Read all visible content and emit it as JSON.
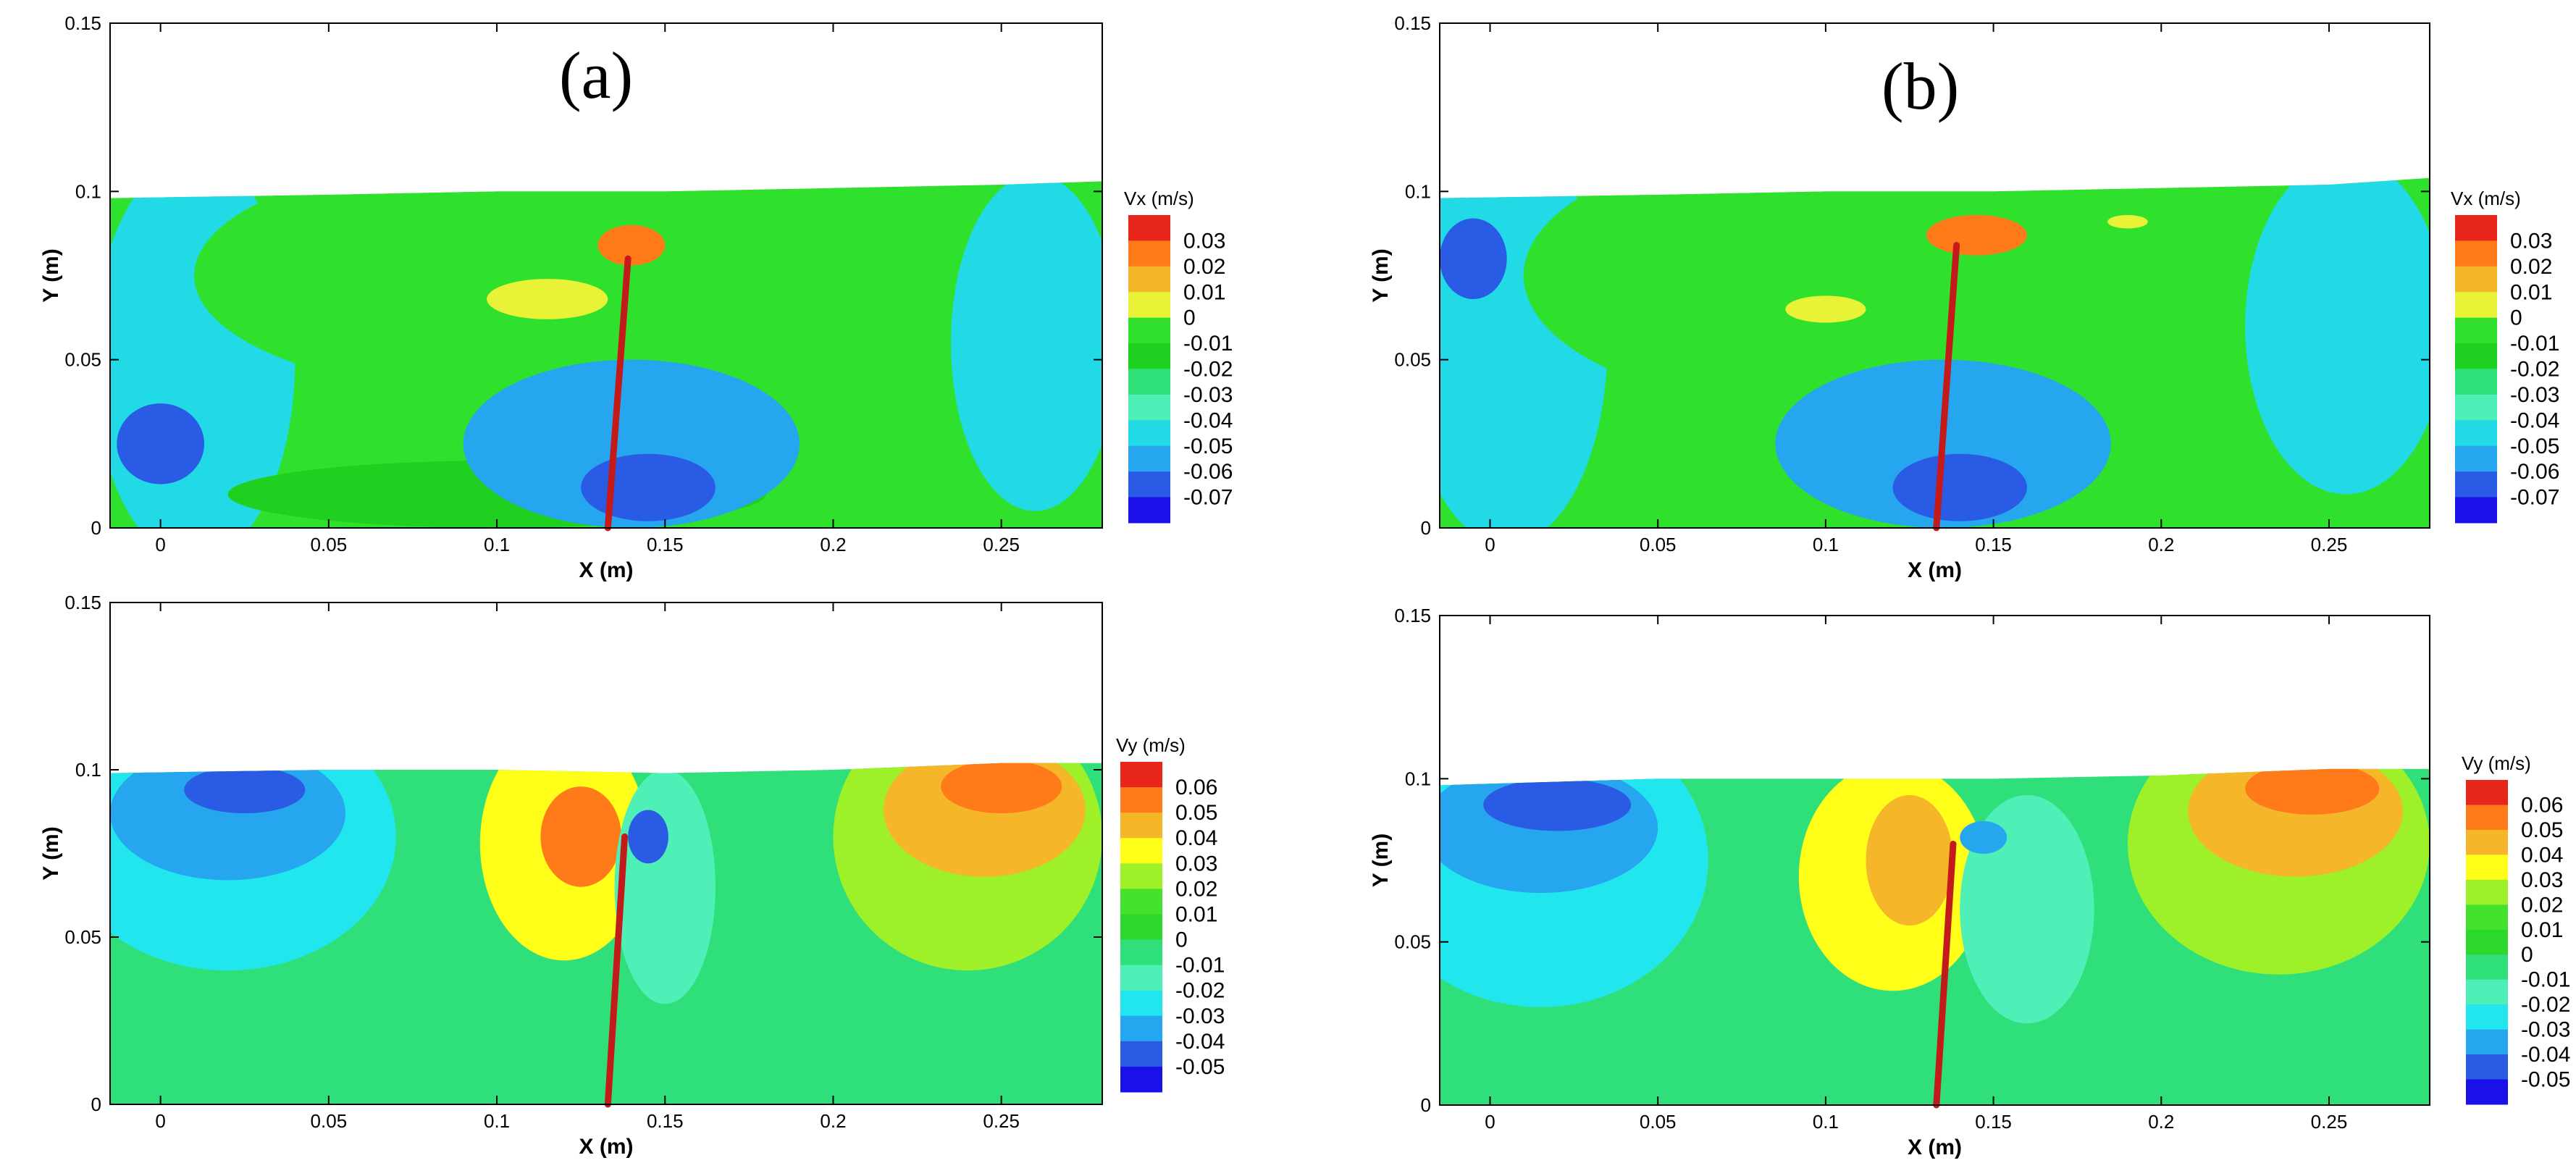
{
  "chart_data": [
    {
      "type": "heatmap",
      "panel_tag": "(a)",
      "quantity": "Vx",
      "xlabel": "X (m)",
      "ylabel": "Y (m)",
      "xlim": [
        -0.015,
        0.28
      ],
      "ylim": [
        0,
        0.15
      ],
      "x_ticks": [
        0,
        0.05,
        0.1,
        0.15,
        0.2,
        0.25
      ],
      "x_tick_labels": [
        "0",
        "0.05",
        "0.1",
        "0.15",
        "0.2",
        "0.25"
      ],
      "y_ticks": [
        0,
        0.05,
        0.1,
        0.15
      ],
      "y_tick_labels": [
        "0",
        "0.05",
        "0.1",
        "0.15"
      ],
      "grid": false,
      "legend": {
        "title": "Vx (m/s)",
        "placement": "right",
        "levels": [
          "0.03",
          "0.02",
          "0.01",
          "0",
          "-0.01",
          "-0.02",
          "-0.03",
          "-0.04",
          "-0.05",
          "-0.06",
          "-0.07"
        ],
        "colors": [
          "#e8251a",
          "#ff7a18",
          "#f5b62a",
          "#e8f237",
          "#2fe12c",
          "#20d020",
          "#2fe07a",
          "#4ff0b8",
          "#22d9e6",
          "#25a6ee",
          "#2a5be4",
          "#1b10e8"
        ]
      },
      "free_surface": {
        "x": [
          -0.015,
          0.05,
          0.1,
          0.15,
          0.2,
          0.25,
          0.28
        ],
        "y": [
          0.098,
          0.099,
          0.1,
          0.1,
          0.101,
          0.102,
          0.103
        ]
      },
      "plate": {
        "base_x": 0.133,
        "base_y": 0,
        "tip_x": 0.139,
        "tip_y": 0.08,
        "color": "#c41a1a"
      },
      "regions": [
        {
          "cx": 0.01,
          "cy": 0.05,
          "rx": 0.03,
          "ry": 0.06,
          "value": -0.045
        },
        {
          "cx": 0.1,
          "cy": 0.075,
          "rx": 0.09,
          "ry": 0.035,
          "value": -0.01
        },
        {
          "cx": 0.26,
          "cy": 0.055,
          "rx": 0.025,
          "ry": 0.05,
          "value": -0.05
        },
        {
          "cx": 0.1,
          "cy": 0.01,
          "rx": 0.08,
          "ry": 0.01,
          "value": -0.015
        },
        {
          "cx": 0.14,
          "cy": 0.025,
          "rx": 0.05,
          "ry": 0.025,
          "value": -0.055
        },
        {
          "cx": 0.0,
          "cy": 0.025,
          "rx": 0.013,
          "ry": 0.012,
          "value": -0.065
        },
        {
          "cx": 0.145,
          "cy": 0.012,
          "rx": 0.02,
          "ry": 0.01,
          "value": -0.068
        },
        {
          "cx": 0.115,
          "cy": 0.068,
          "rx": 0.018,
          "ry": 0.006,
          "value": 0.005
        },
        {
          "cx": 0.14,
          "cy": 0.084,
          "rx": 0.01,
          "ry": 0.006,
          "value": 0.02
        }
      ]
    },
    {
      "type": "heatmap",
      "panel_tag": "(b)",
      "quantity": "Vx",
      "xlabel": "X (m)",
      "ylabel": "Y (m)",
      "xlim": [
        -0.015,
        0.28
      ],
      "ylim": [
        0,
        0.15
      ],
      "x_ticks": [
        0,
        0.05,
        0.1,
        0.15,
        0.2,
        0.25
      ],
      "x_tick_labels": [
        "0",
        "0.05",
        "0.1",
        "0.15",
        "0.2",
        "0.25"
      ],
      "y_ticks": [
        0,
        0.05,
        0.1,
        0.15
      ],
      "y_tick_labels": [
        "0",
        "0.05",
        "0.1",
        "0.15"
      ],
      "grid": false,
      "legend": {
        "title": "Vx (m/s)",
        "placement": "right",
        "levels": [
          "0.03",
          "0.02",
          "0.01",
          "0",
          "-0.01",
          "-0.02",
          "-0.03",
          "-0.04",
          "-0.05",
          "-0.06",
          "-0.07"
        ],
        "colors": [
          "#e8251a",
          "#ff7a18",
          "#f5b62a",
          "#e8f237",
          "#2fe12c",
          "#20d020",
          "#2fe07a",
          "#4ff0b8",
          "#22d9e6",
          "#25a6ee",
          "#2a5be4",
          "#1b10e8"
        ]
      },
      "free_surface": {
        "x": [
          -0.015,
          0.05,
          0.1,
          0.15,
          0.2,
          0.25,
          0.28
        ],
        "y": [
          0.098,
          0.099,
          0.1,
          0.1,
          0.101,
          0.102,
          0.104
        ]
      },
      "plate": {
        "base_x": 0.133,
        "base_y": 0,
        "tip_x": 0.139,
        "tip_y": 0.084,
        "color": "#c41a1a"
      },
      "regions": [
        {
          "cx": 0.005,
          "cy": 0.055,
          "rx": 0.03,
          "ry": 0.06,
          "value": -0.045
        },
        {
          "cx": 0.1,
          "cy": 0.075,
          "rx": 0.09,
          "ry": 0.04,
          "value": -0.01
        },
        {
          "cx": 0.255,
          "cy": 0.06,
          "rx": 0.03,
          "ry": 0.05,
          "value": -0.05
        },
        {
          "cx": 0.135,
          "cy": 0.025,
          "rx": 0.05,
          "ry": 0.025,
          "value": -0.055
        },
        {
          "cx": -0.005,
          "cy": 0.08,
          "rx": 0.01,
          "ry": 0.012,
          "value": -0.065
        },
        {
          "cx": 0.14,
          "cy": 0.012,
          "rx": 0.02,
          "ry": 0.01,
          "value": -0.068
        },
        {
          "cx": 0.1,
          "cy": 0.065,
          "rx": 0.012,
          "ry": 0.004,
          "value": 0.005
        },
        {
          "cx": 0.145,
          "cy": 0.087,
          "rx": 0.015,
          "ry": 0.006,
          "value": 0.02
        },
        {
          "cx": 0.19,
          "cy": 0.091,
          "rx": 0.006,
          "ry": 0.002,
          "value": 0.005
        }
      ]
    },
    {
      "type": "heatmap",
      "quantity": "Vy",
      "xlabel": "X (m)",
      "ylabel": "Y (m)",
      "xlim": [
        -0.015,
        0.28
      ],
      "ylim": [
        0,
        0.15
      ],
      "x_ticks": [
        0,
        0.05,
        0.1,
        0.15,
        0.2,
        0.25
      ],
      "x_tick_labels": [
        "0",
        "0.05",
        "0.1",
        "0.15",
        "0.2",
        "0.25"
      ],
      "y_ticks": [
        0,
        0.05,
        0.1,
        0.15
      ],
      "y_tick_labels": [
        "0",
        "0.05",
        "0.1",
        "0.15"
      ],
      "grid": false,
      "legend": {
        "title": "Vy (m/s)",
        "placement": "right",
        "levels": [
          "0.06",
          "0.05",
          "0.04",
          "0.03",
          "0.02",
          "0.01",
          "0",
          "-0.01",
          "-0.02",
          "-0.03",
          "-0.04",
          "-0.05"
        ],
        "colors": [
          "#e8251a",
          "#ff7a18",
          "#f5b62a",
          "#ffff1a",
          "#9ef028",
          "#44e22c",
          "#2bd82b",
          "#2fe07a",
          "#4ff0b8",
          "#22e6ee",
          "#25a6ee",
          "#2a5be4",
          "#1b10e8"
        ]
      },
      "free_surface": {
        "x": [
          -0.015,
          0.05,
          0.1,
          0.15,
          0.2,
          0.25,
          0.28
        ],
        "y": [
          0.099,
          0.1,
          0.1,
          0.099,
          0.1,
          0.102,
          0.102
        ]
      },
      "plate": {
        "base_x": 0.133,
        "base_y": 0,
        "tip_x": 0.138,
        "tip_y": 0.08,
        "color": "#c41a1a"
      },
      "regions": [
        {
          "cx": 0.02,
          "cy": 0.08,
          "rx": 0.05,
          "ry": 0.04,
          "value": -0.025
        },
        {
          "cx": 0.02,
          "cy": 0.087,
          "rx": 0.035,
          "ry": 0.02,
          "value": -0.04
        },
        {
          "cx": 0.025,
          "cy": 0.094,
          "rx": 0.018,
          "ry": 0.007,
          "value": -0.05
        },
        {
          "cx": 0.12,
          "cy": 0.078,
          "rx": 0.025,
          "ry": 0.035,
          "value": 0.035
        },
        {
          "cx": 0.125,
          "cy": 0.08,
          "rx": 0.012,
          "ry": 0.015,
          "value": 0.05
        },
        {
          "cx": 0.15,
          "cy": 0.065,
          "rx": 0.015,
          "ry": 0.035,
          "value": -0.02
        },
        {
          "cx": 0.145,
          "cy": 0.08,
          "rx": 0.006,
          "ry": 0.008,
          "value": -0.045
        },
        {
          "cx": 0.24,
          "cy": 0.08,
          "rx": 0.04,
          "ry": 0.04,
          "value": 0.025
        },
        {
          "cx": 0.245,
          "cy": 0.088,
          "rx": 0.03,
          "ry": 0.02,
          "value": 0.04
        },
        {
          "cx": 0.25,
          "cy": 0.095,
          "rx": 0.018,
          "ry": 0.008,
          "value": 0.05
        }
      ]
    },
    {
      "type": "heatmap",
      "quantity": "Vy",
      "xlabel": "X (m)",
      "ylabel": "Y (m)",
      "xlim": [
        -0.015,
        0.28
      ],
      "ylim": [
        0,
        0.15
      ],
      "x_ticks": [
        0,
        0.05,
        0.1,
        0.15,
        0.2,
        0.25
      ],
      "x_tick_labels": [
        "0",
        "0.05",
        "0.1",
        "0.15",
        "0.2",
        "0.25"
      ],
      "y_ticks": [
        0,
        0.05,
        0.1,
        0.15
      ],
      "y_tick_labels": [
        "0",
        "0.05",
        "0.1",
        "0.15"
      ],
      "grid": false,
      "legend": {
        "title": "Vy (m/s)",
        "placement": "right",
        "levels": [
          "0.06",
          "0.05",
          "0.04",
          "0.03",
          "0.02",
          "0.01",
          "0",
          "-0.01",
          "-0.02",
          "-0.03",
          "-0.04",
          "-0.05"
        ],
        "colors": [
          "#e8251a",
          "#ff7a18",
          "#f5b62a",
          "#ffff1a",
          "#9ef028",
          "#44e22c",
          "#2bd82b",
          "#2fe07a",
          "#4ff0b8",
          "#22e6ee",
          "#25a6ee",
          "#2a5be4",
          "#1b10e8"
        ]
      },
      "free_surface": {
        "x": [
          -0.015,
          0.05,
          0.1,
          0.15,
          0.2,
          0.25,
          0.28
        ],
        "y": [
          0.098,
          0.1,
          0.1,
          0.1,
          0.101,
          0.103,
          0.103
        ]
      },
      "plate": {
        "base_x": 0.133,
        "base_y": 0,
        "tip_x": 0.138,
        "tip_y": 0.08,
        "color": "#c41a1a"
      },
      "regions": [
        {
          "cx": 0.015,
          "cy": 0.075,
          "rx": 0.05,
          "ry": 0.045,
          "value": -0.025
        },
        {
          "cx": 0.015,
          "cy": 0.085,
          "rx": 0.035,
          "ry": 0.02,
          "value": -0.04
        },
        {
          "cx": 0.02,
          "cy": 0.092,
          "rx": 0.022,
          "ry": 0.008,
          "value": -0.05
        },
        {
          "cx": 0.12,
          "cy": 0.07,
          "rx": 0.028,
          "ry": 0.035,
          "value": 0.035
        },
        {
          "cx": 0.125,
          "cy": 0.075,
          "rx": 0.013,
          "ry": 0.02,
          "value": 0.045
        },
        {
          "cx": 0.16,
          "cy": 0.06,
          "rx": 0.02,
          "ry": 0.035,
          "value": -0.02
        },
        {
          "cx": 0.147,
          "cy": 0.082,
          "rx": 0.007,
          "ry": 0.005,
          "value": -0.04
        },
        {
          "cx": 0.235,
          "cy": 0.08,
          "rx": 0.045,
          "ry": 0.04,
          "value": 0.025
        },
        {
          "cx": 0.24,
          "cy": 0.09,
          "rx": 0.032,
          "ry": 0.02,
          "value": 0.04
        },
        {
          "cx": 0.245,
          "cy": 0.097,
          "rx": 0.02,
          "ry": 0.008,
          "value": 0.05
        }
      ]
    }
  ]
}
